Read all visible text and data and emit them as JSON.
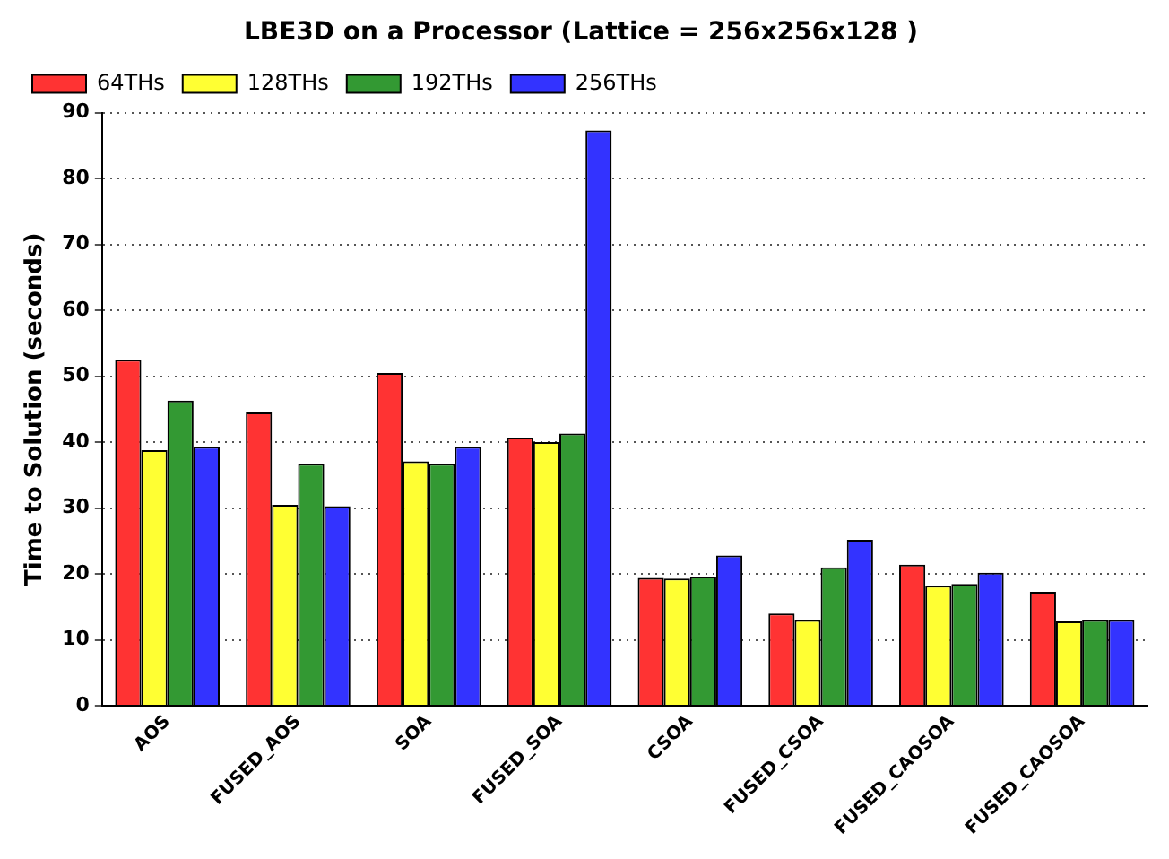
{
  "chart_data": {
    "type": "bar",
    "title": "LBE3D on a Processor (Lattice = 256x256x128 )",
    "ylabel": "Time to Solution (seconds)",
    "categories": [
      "AOS",
      "FUSED_AOS",
      "SOA",
      "FUSED_SOA",
      "CSOA",
      "FUSED_CSOA",
      "FUSED_CAOSOA",
      "FUSED_CAOSOA"
    ],
    "series": [
      {
        "name": "64THs",
        "color": "#ff3333",
        "values": [
          52.5,
          44.5,
          50.5,
          40.7,
          19.4,
          14,
          21.4,
          17.3
        ]
      },
      {
        "name": "128THs",
        "color": "#ffff33",
        "values": [
          38.8,
          30.5,
          37.1,
          40,
          19.3,
          13,
          18.2,
          12.8
        ]
      },
      {
        "name": "192THs",
        "color": "#339933",
        "values": [
          46.3,
          36.7,
          36.7,
          41.3,
          19.6,
          21,
          18.5,
          13
        ]
      },
      {
        "name": "256THs",
        "color": "#3333ff",
        "values": [
          39.3,
          30.3,
          39.3,
          87.3,
          22.8,
          25.2,
          20.2,
          13
        ]
      }
    ],
    "ylim": [
      0,
      90
    ],
    "yticks": [
      0,
      10,
      20,
      30,
      40,
      50,
      60,
      70,
      80,
      90
    ],
    "grid": "y",
    "legend": "top left"
  }
}
